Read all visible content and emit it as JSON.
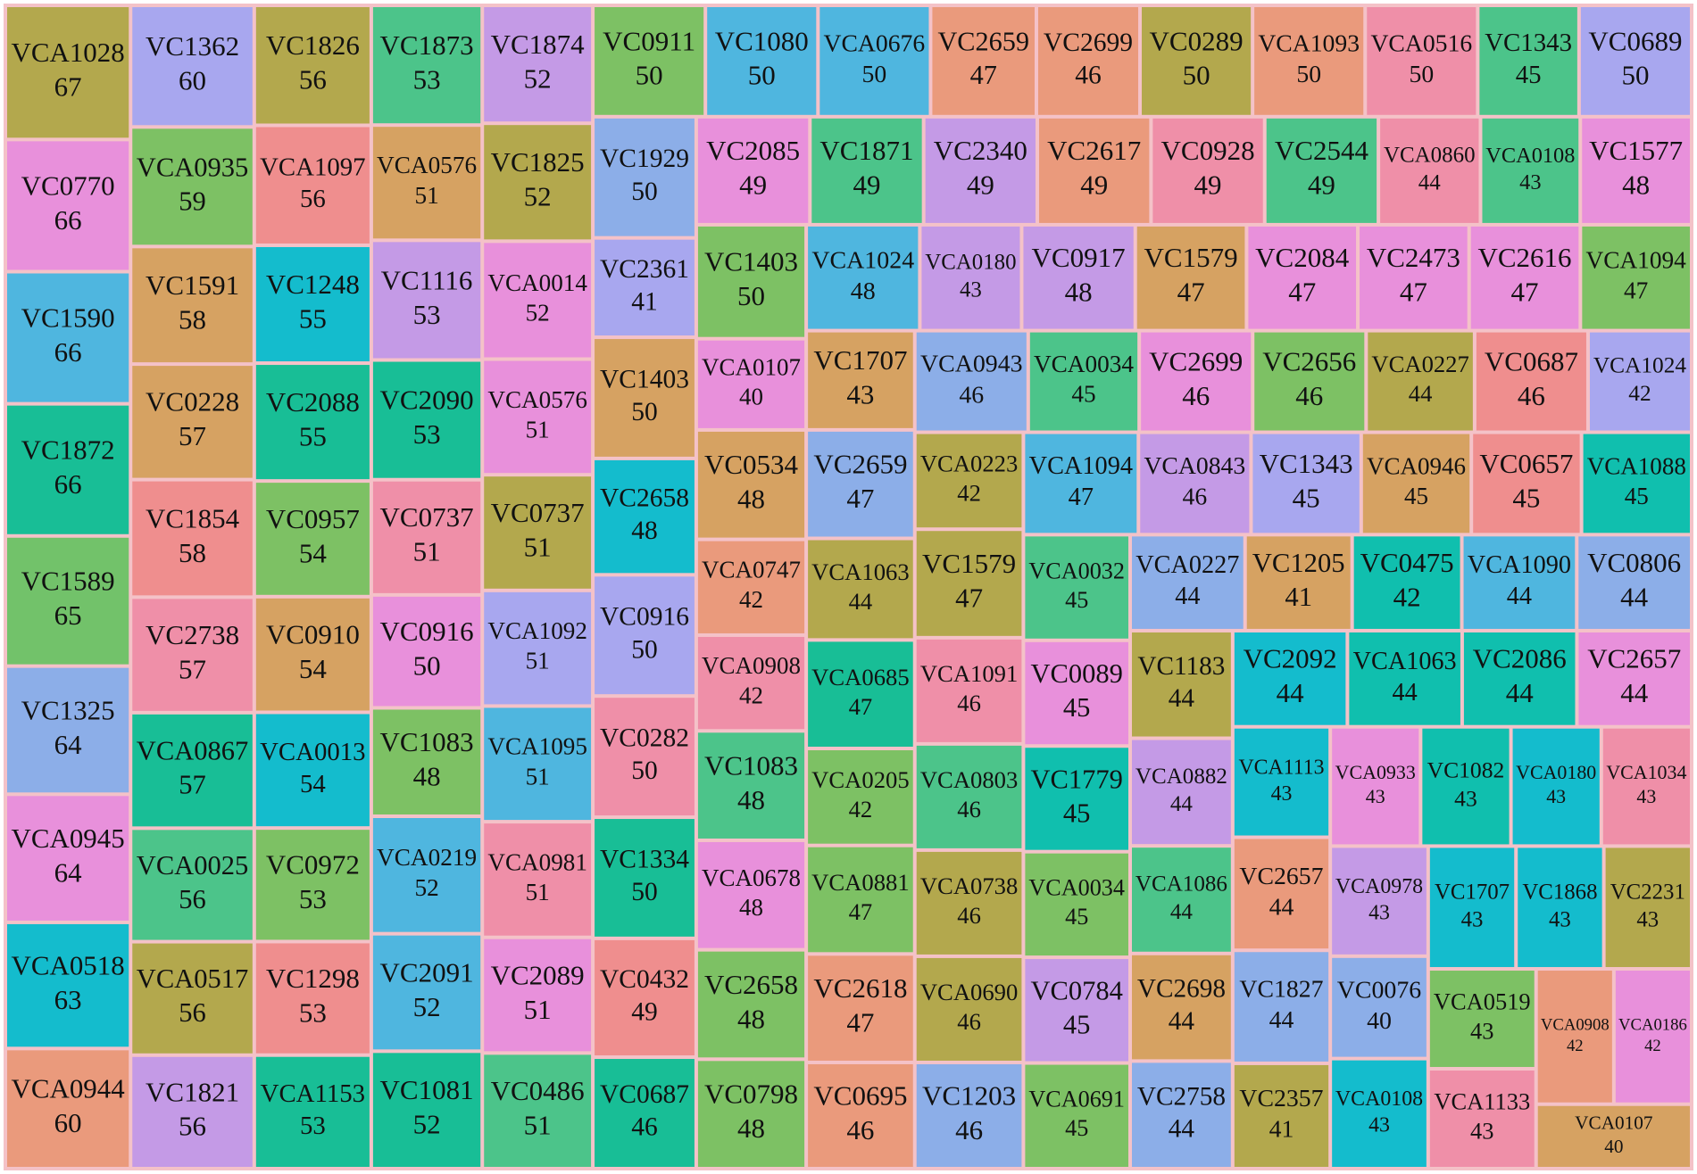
{
  "chart_data": {
    "type": "treemap",
    "categories": [
      "VCA1028",
      "VC0770",
      "VC1590",
      "VC1872",
      "VC1589",
      "VC1325",
      "VCA0945",
      "VCA0518",
      "VCA0944",
      "VC1362",
      "VCA0935",
      "VC1591",
      "VC0228",
      "VC1854",
      "VC2738",
      "VCA0867",
      "VCA0025",
      "VCA0517",
      "VC1821",
      "VC1826",
      "VCA1097",
      "VC1248",
      "VC2088",
      "VC0957",
      "VC0910",
      "VCA0013",
      "VC0972",
      "VC1298",
      "VCA1153",
      "VC1873",
      "VCA0576",
      "VC1116",
      "VC2090",
      "VC0737",
      "VC0916",
      "VC1083",
      "VCA0219",
      "VC2091",
      "VC1081",
      "VC1874",
      "VC1825",
      "VCA0014",
      "VCA0576",
      "VC0737",
      "VCA1092",
      "VCA1095",
      "VCA0981",
      "VC2089",
      "VC0486",
      "VC0911",
      "VC1080",
      "VCA0676",
      "VC2659",
      "VC2699",
      "VC0289",
      "VCA1093",
      "VCA0516",
      "VC1343",
      "VC0689",
      "VC1929",
      "VC2361",
      "VC1403",
      "VC2658",
      "VC0916",
      "VC0282",
      "VC1334",
      "VC0432",
      "VC0687",
      "VC2085",
      "VC1871",
      "VC2340",
      "VC2617",
      "VC0928",
      "VC2544",
      "VCA0860",
      "VCA0108",
      "VC1577",
      "VC1403",
      "VCA0107",
      "VC0534",
      "VCA0747",
      "VCA0908",
      "VC1083",
      "VCA0678",
      "VC2658",
      "VC0798",
      "VCA1024",
      "VCA0180",
      "VC0917",
      "VC1579",
      "VC2084",
      "VC2473",
      "VC2616",
      "VCA1094",
      "VC1707",
      "VC2659",
      "VCA1063",
      "VCA0685",
      "VCA0205",
      "VCA0881",
      "VC2618",
      "VC0695",
      "VCA0943",
      "VCA0034",
      "VC2699",
      "VC2656",
      "VCA0227",
      "VC0687",
      "VCA1024",
      "VCA0223",
      "VC1579",
      "VCA1091",
      "VCA0803",
      "VCA0738",
      "VCA0690",
      "VC1203",
      "VCA1094",
      "VCA0843",
      "VC1343",
      "VCA0946",
      "VC0657",
      "VCA1088",
      "VCA0032",
      "VC0089",
      "VC1779",
      "VCA0034",
      "VC0784",
      "VCA0691",
      "VCA0227",
      "VC1205",
      "VC0475",
      "VCA1090",
      "VC0806",
      "VC1183",
      "VCA0882",
      "VCA1086",
      "VC2698",
      "VC2758",
      "VC2092",
      "VCA1063",
      "VC2086",
      "VC2657",
      "VCA1113",
      "VC2657",
      "VC1827",
      "VC2357",
      "VCA0933",
      "VC1082",
      "VCA0180",
      "VCA1034",
      "VCA0978",
      "VC0076",
      "VCA0108",
      "VC1707",
      "VC1868",
      "VC2231",
      "VCA0519",
      "VCA1133",
      "VCA0908",
      "VCA0186",
      "VCA0107"
    ],
    "values": [
      67,
      66,
      66,
      66,
      65,
      64,
      64,
      63,
      60,
      60,
      59,
      58,
      57,
      58,
      57,
      57,
      56,
      56,
      56,
      56,
      56,
      55,
      55,
      54,
      54,
      54,
      53,
      53,
      53,
      53,
      51,
      53,
      53,
      51,
      50,
      48,
      52,
      52,
      52,
      52,
      52,
      52,
      51,
      51,
      51,
      51,
      51,
      51,
      51,
      50,
      50,
      50,
      47,
      46,
      50,
      50,
      50,
      45,
      50,
      50,
      41,
      50,
      48,
      50,
      50,
      50,
      49,
      46,
      49,
      49,
      49,
      49,
      49,
      49,
      44,
      43,
      48,
      50,
      40,
      48,
      42,
      42,
      48,
      48,
      48,
      48,
      48,
      43,
      48,
      47,
      47,
      47,
      47,
      47,
      43,
      47,
      44,
      47,
      42,
      47,
      47,
      46,
      46,
      45,
      46,
      46,
      44,
      46,
      42,
      42,
      47,
      46,
      46,
      46,
      46,
      46,
      47,
      46,
      45,
      45,
      45,
      45,
      45,
      45,
      45,
      45,
      45,
      45,
      44,
      41,
      42,
      44,
      44,
      44,
      44,
      44,
      44,
      44,
      44,
      44,
      44,
      44,
      43,
      44,
      44,
      41,
      43,
      43,
      43,
      43,
      43,
      40,
      43,
      43,
      43,
      43,
      43,
      43,
      42,
      42,
      40
    ],
    "colors": [
      "#b3a84d",
      "#e890db",
      "#4fb6df",
      "#18be96",
      "#72c26a",
      "#8caee8",
      "#e890db",
      "#14bccd",
      "#ea9a7c",
      "#a8a7ef",
      "#7dc164",
      "#d6a262",
      "#d6a262",
      "#ef8e8e",
      "#ef8fa8",
      "#18be96",
      "#4cc48a",
      "#b3a84d",
      "#c49ae6",
      "#b3a84d",
      "#ef8e8e",
      "#14bccd",
      "#18be96",
      "#7dc164",
      "#d6a262",
      "#14bccd",
      "#7dc164",
      "#ef8e8e",
      "#18be96",
      "#4cc48a",
      "#d6a262",
      "#c49ae6",
      "#18be96",
      "#ef8fa8",
      "#e890db",
      "#7dc164",
      "#4fb6df",
      "#4fb6df",
      "#18be96",
      "#c49ae6",
      "#b3a84d",
      "#e890db",
      "#e890db",
      "#b3a84d",
      "#a8a7ef",
      "#4fb6df",
      "#ef8fa8",
      "#e890db",
      "#4cc48a",
      "#7dc164",
      "#4fb6df",
      "#4fb6df",
      "#ea9a7c",
      "#ea9a7c",
      "#b3a84d",
      "#ea9a7c",
      "#ef8fa8",
      "#4cc48a",
      "#a8a7ef",
      "#8caee8",
      "#a8a7ef",
      "#d6a262",
      "#14bccd",
      "#a8a7ef",
      "#ef8fa8",
      "#18be96",
      "#ef8e8e",
      "#18be96",
      "#e890db",
      "#4cc48a",
      "#c49ae6",
      "#ea9a7c",
      "#ef8fa8",
      "#4cc48a",
      "#ef8fa8",
      "#4cc48a",
      "#e890db",
      "#7dc164",
      "#e890db",
      "#d6a262",
      "#ea9a7c",
      "#ef8fa8",
      "#4cc48a",
      "#e890db",
      "#7dc164",
      "#7dc164",
      "#4fb6df",
      "#c49ae6",
      "#c49ae6",
      "#d6a262",
      "#e890db",
      "#e890db",
      "#e890db",
      "#7dc164",
      "#d6a262",
      "#8caee8",
      "#b3a84d",
      "#18be96",
      "#7dc164",
      "#7dc164",
      "#ea9a7c",
      "#ea9a7c",
      "#8caee8",
      "#4cc48a",
      "#e890db",
      "#7dc164",
      "#b3a84d",
      "#ef8e8e",
      "#a8a7ef",
      "#b3a84d",
      "#b3a84d",
      "#ef8fa8",
      "#4cc48a",
      "#b3a84d",
      "#b3a84d",
      "#8caee8",
      "#4fb6df",
      "#c49ae6",
      "#a8a7ef",
      "#d6a262",
      "#ef8e8e",
      "#10bfae",
      "#4cc48a",
      "#e890db",
      "#10bfae",
      "#7dc164",
      "#c49ae6",
      "#7dc164",
      "#8caee8",
      "#d6a262",
      "#10bfae",
      "#4fb6df",
      "#8caee8",
      "#b3a84d",
      "#c49ae6",
      "#4cc48a",
      "#d6a262",
      "#8caee8",
      "#14bccd",
      "#10bfae",
      "#10bfae",
      "#e890db",
      "#14bccd",
      "#ea9a7c",
      "#8caee8",
      "#b3a84d",
      "#e890db",
      "#10bfae",
      "#14bccd",
      "#ef8fa8",
      "#c49ae6",
      "#8caee8",
      "#14bccd",
      "#14bccd",
      "#14bccd",
      "#b3a84d",
      "#7dc164",
      "#ef8fa8",
      "#ea9a7c",
      "#e890db",
      "#d6a262"
    ]
  }
}
